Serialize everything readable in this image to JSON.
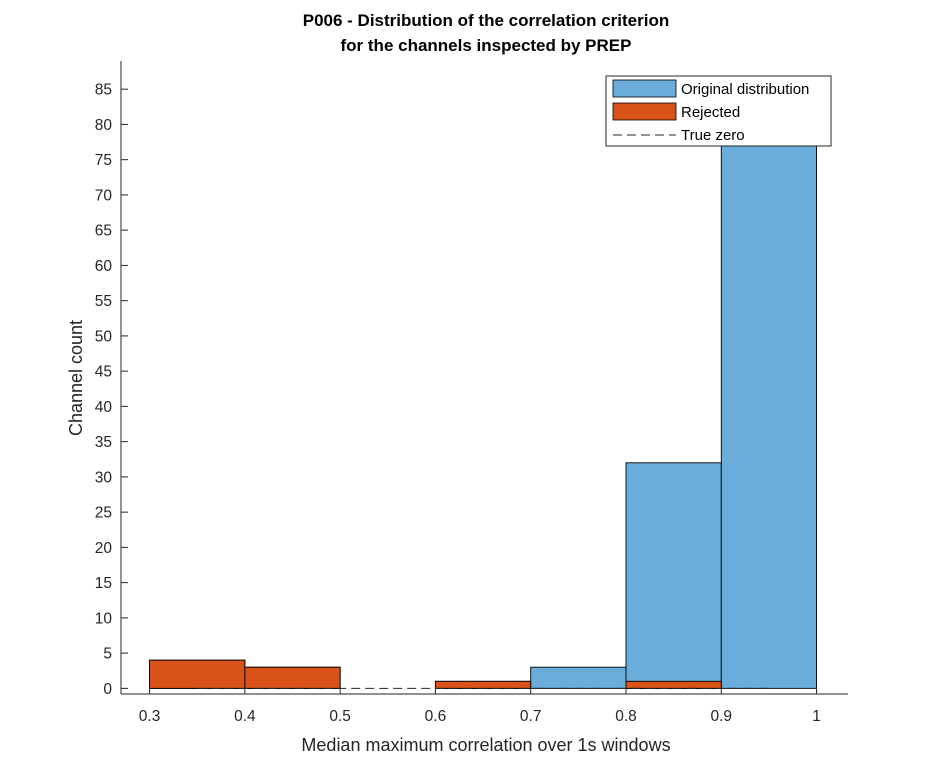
{
  "chart_data": {
    "type": "bar",
    "title": "P006 - Distribution of the correlation criterion",
    "subtitle": "for the channels inspected by PREP",
    "xlabel": "Median maximum correlation over 1s windows",
    "ylabel": "Channel count",
    "xlim": [
      0.27,
      1.033
    ],
    "ylim": [
      -0.8,
      89
    ],
    "xticks": [
      "0.3",
      "0.4",
      "0.5",
      "0.6",
      "0.7",
      "0.8",
      "0.9",
      "1"
    ],
    "yticks": [
      "0",
      "5",
      "10",
      "15",
      "20",
      "25",
      "30",
      "35",
      "40",
      "45",
      "50",
      "55",
      "60",
      "65",
      "70",
      "75",
      "80",
      "85"
    ],
    "bin_edges": [
      0.3,
      0.4,
      0.5,
      0.6,
      0.7,
      0.8,
      0.9,
      1.0
    ],
    "series": [
      {
        "name": "Original distribution",
        "color": "#6aaddb",
        "values": [
          4,
          3,
          0,
          1,
          3,
          32,
          77
        ]
      },
      {
        "name": "Rejected",
        "color": "#d95319",
        "values": [
          4,
          3,
          0,
          1,
          0,
          1,
          0
        ]
      }
    ],
    "reference_line": {
      "name": "True zero",
      "y": 0,
      "x_range": [
        0.35,
        0.95
      ],
      "style": "dashed",
      "color": "#262626"
    },
    "legend_position": "top-right",
    "grid": false
  }
}
